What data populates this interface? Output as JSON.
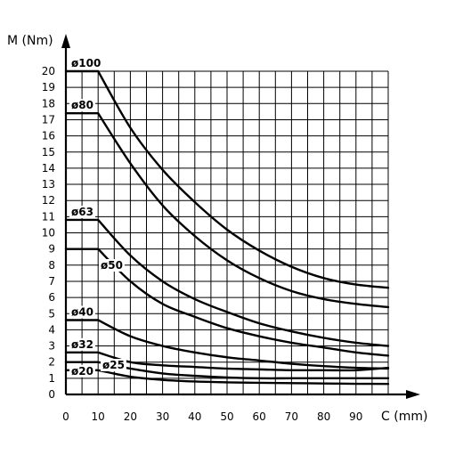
{
  "chart_data": {
    "type": "line",
    "xlabel": "C (mm)",
    "ylabel": "M (Nm)",
    "xlim": [
      0,
      100
    ],
    "ylim": [
      0,
      20
    ],
    "x_ticks": [
      "0",
      "10",
      "20",
      "30",
      "40",
      "50",
      "60",
      "70",
      "80",
      "90"
    ],
    "y_ticks": [
      "0",
      "1",
      "2",
      "3",
      "4",
      "5",
      "6",
      "7",
      "8",
      "9",
      "10",
      "11",
      "12",
      "13",
      "14",
      "15",
      "16",
      "17",
      "18",
      "19",
      "20"
    ],
    "grid": true,
    "series": [
      {
        "name": "ø100",
        "x": [
          0,
          10,
          20,
          30,
          40,
          50,
          60,
          70,
          80,
          90,
          100
        ],
        "y": [
          20,
          20,
          16.5,
          13.9,
          11.9,
          10.2,
          8.9,
          7.9,
          7.2,
          6.8,
          6.6
        ]
      },
      {
        "name": "ø80",
        "x": [
          0,
          10,
          20,
          30,
          40,
          50,
          60,
          70,
          80,
          90,
          100
        ],
        "y": [
          17.4,
          17.4,
          14.3,
          11.7,
          9.8,
          8.3,
          7.2,
          6.4,
          5.9,
          5.6,
          5.4
        ]
      },
      {
        "name": "ø63",
        "x": [
          0,
          10,
          20,
          30,
          40,
          50,
          60,
          70,
          80,
          90,
          100
        ],
        "y": [
          10.8,
          10.8,
          8.6,
          7.0,
          5.9,
          5.1,
          4.4,
          3.9,
          3.5,
          3.2,
          3.0
        ]
      },
      {
        "name": "ø50",
        "x": [
          0,
          10,
          20,
          30,
          40,
          50,
          60,
          70,
          80,
          90,
          100
        ],
        "y": [
          9.0,
          9.0,
          7.0,
          5.6,
          4.8,
          4.1,
          3.6,
          3.2,
          2.9,
          2.6,
          2.4
        ]
      },
      {
        "name": "ø40",
        "x": [
          0,
          10,
          20,
          30,
          40,
          50,
          60,
          70,
          80,
          90,
          100
        ],
        "y": [
          4.6,
          4.6,
          3.6,
          3.0,
          2.6,
          2.3,
          2.1,
          1.9,
          1.75,
          1.65,
          1.6
        ]
      },
      {
        "name": "ø32",
        "x": [
          0,
          10,
          20,
          30,
          40,
          50,
          60,
          70,
          80,
          90,
          100
        ],
        "y": [
          2.6,
          2.6,
          2.0,
          1.8,
          1.7,
          1.6,
          1.55,
          1.5,
          1.5,
          1.5,
          1.65
        ]
      },
      {
        "name": "ø25",
        "x": [
          0,
          10,
          20,
          30,
          40,
          50,
          60,
          70,
          80,
          90,
          100
        ],
        "y": [
          2.0,
          2.0,
          1.6,
          1.3,
          1.15,
          1.05,
          1.0,
          1.0,
          1.0,
          1.0,
          1.0
        ]
      },
      {
        "name": "ø20",
        "x": [
          0,
          10,
          20,
          30,
          40,
          50,
          60,
          70,
          80,
          90,
          100
        ],
        "y": [
          1.5,
          1.5,
          1.1,
          0.9,
          0.8,
          0.75,
          0.72,
          0.7,
          0.68,
          0.66,
          0.65
        ]
      }
    ]
  }
}
